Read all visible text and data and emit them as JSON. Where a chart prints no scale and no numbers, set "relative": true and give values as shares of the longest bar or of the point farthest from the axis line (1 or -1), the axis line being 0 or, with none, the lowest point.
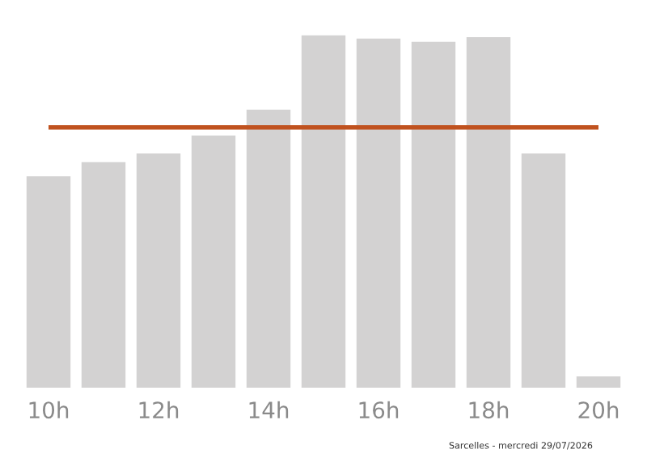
{
  "chart_data": {
    "type": "bar",
    "relative": true,
    "categories": [
      "10h",
      null,
      "12h",
      null,
      "14h",
      null,
      "16h",
      null,
      "18h",
      null,
      "20h"
    ],
    "values": [
      0.6,
      0.64,
      0.665,
      0.716,
      0.789,
      1,
      0.991,
      0.982,
      0.995,
      0.665,
      0.032
    ],
    "color": "#d3d2d2",
    "tick_labels": "x",
    "ref_lines": [
      {
        "axis": "y",
        "value": 0.739,
        "color": "#c0521f"
      }
    ],
    "annotations": [
      "Sarcelles - mercredi 29/07/2026"
    ]
  }
}
